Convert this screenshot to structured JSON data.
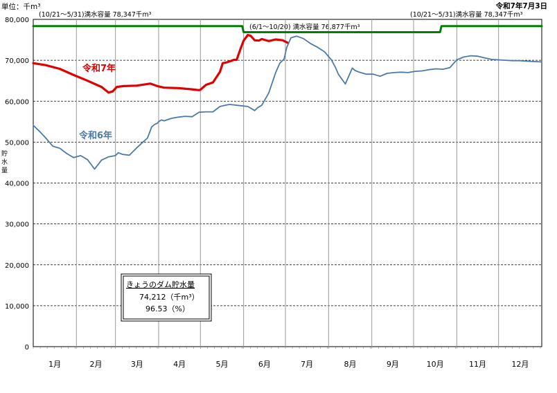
{
  "header": {
    "unit": "単位：千m³",
    "date": "令和7年7月3日"
  },
  "capacity_labels": {
    "left": "(10/21～5/31)満水容量  78,347千m³",
    "middle": "(6/1～10/20) 満水容量  76,877千m³",
    "right": "(10/21～5/31)満水容量  78,347千m³"
  },
  "ylabel": [
    "貯",
    "水",
    "量"
  ],
  "info_box": {
    "title": "きょうのダム貯水量",
    "volume": "74,212（千m³）",
    "percent": "96.53（%）"
  },
  "chart_data": {
    "type": "line",
    "title": "",
    "xlabel": "",
    "ylabel": "貯水量",
    "ylim": [
      0,
      80000
    ],
    "y_ticks": [
      "0",
      "10,000",
      "20,000",
      "30,000",
      "40,000",
      "50,000",
      "60,000",
      "70,000",
      "80,000"
    ],
    "y_tick_values": [
      0,
      10000,
      20000,
      30000,
      40000,
      50000,
      60000,
      70000,
      80000
    ],
    "x_unit": "day_of_year",
    "xlim": [
      1,
      366
    ],
    "months": [
      "1月",
      "2月",
      "3月",
      "4月",
      "5月",
      "6月",
      "7月",
      "8月",
      "9月",
      "10月",
      "11月",
      "12月"
    ],
    "grid": true,
    "series": [
      {
        "name": "令和7年",
        "color": "#e00000",
        "x": [
          1,
          10,
          20,
          30,
          40,
          50,
          55,
          58,
          61,
          66,
          75,
          85,
          90,
          95,
          105,
          115,
          120,
          121,
          125,
          130,
          135,
          137,
          140,
          145,
          147,
          150,
          152,
          155,
          157,
          160,
          163,
          165,
          167,
          170,
          175,
          180,
          184
        ],
        "y": [
          69300,
          68800,
          67900,
          66400,
          65000,
          63500,
          62100,
          62400,
          63500,
          63700,
          63800,
          64300,
          63700,
          63300,
          63200,
          62900,
          62700,
          62800,
          64000,
          64600,
          67200,
          69300,
          69500,
          70100,
          70100,
          73000,
          74800,
          76200,
          76000,
          74900,
          74800,
          75200,
          75000,
          74700,
          75100,
          74900,
          74212
        ]
      },
      {
        "name": "令和6年",
        "color": "#4a7aaa",
        "x": [
          1,
          5,
          10,
          15,
          20,
          25,
          30,
          35,
          40,
          45,
          50,
          55,
          60,
          62,
          65,
          70,
          75,
          80,
          83,
          86,
          88,
          90,
          91,
          93,
          95,
          100,
          105,
          110,
          115,
          120,
          125,
          130,
          135,
          140,
          142,
          145,
          150,
          155,
          160,
          162,
          165,
          170,
          175,
          178,
          181,
          183,
          186,
          190,
          195,
          200,
          205,
          210,
          215,
          218,
          220,
          225,
          230,
          232,
          235,
          240,
          245,
          250,
          255,
          260,
          265,
          270,
          275,
          280,
          285,
          290,
          295,
          300,
          305,
          310,
          315,
          320,
          325,
          330,
          335,
          340,
          345,
          350,
          355,
          360,
          366
        ],
        "y": [
          54100,
          52800,
          51000,
          49000,
          48500,
          47200,
          46200,
          46700,
          45700,
          43400,
          45600,
          46400,
          46700,
          47400,
          47000,
          46800,
          48500,
          50100,
          51000,
          53700,
          54300,
          54600,
          55000,
          55400,
          55200,
          55800,
          56100,
          56300,
          56200,
          57300,
          57400,
          57400,
          58700,
          59100,
          59200,
          59100,
          58900,
          58700,
          57700,
          58400,
          59000,
          62000,
          67000,
          69300,
          70300,
          73200,
          75500,
          75900,
          75300,
          74100,
          73200,
          72100,
          70100,
          68200,
          66600,
          64200,
          68100,
          67500,
          67100,
          66600,
          66600,
          66100,
          66800,
          67000,
          67100,
          67000,
          67300,
          67400,
          67700,
          67900,
          67800,
          68200,
          70100,
          70800,
          71100,
          71000,
          70600,
          70200,
          70100,
          70000,
          69900,
          69900,
          69800,
          69700,
          69600
        ]
      },
      {
        "name": "満水容量",
        "color": "#008000",
        "x": [
          1,
          151,
          152,
          293,
          294,
          366
        ],
        "y": [
          78347,
          78347,
          76877,
          76877,
          78347,
          78347
        ]
      }
    ]
  }
}
